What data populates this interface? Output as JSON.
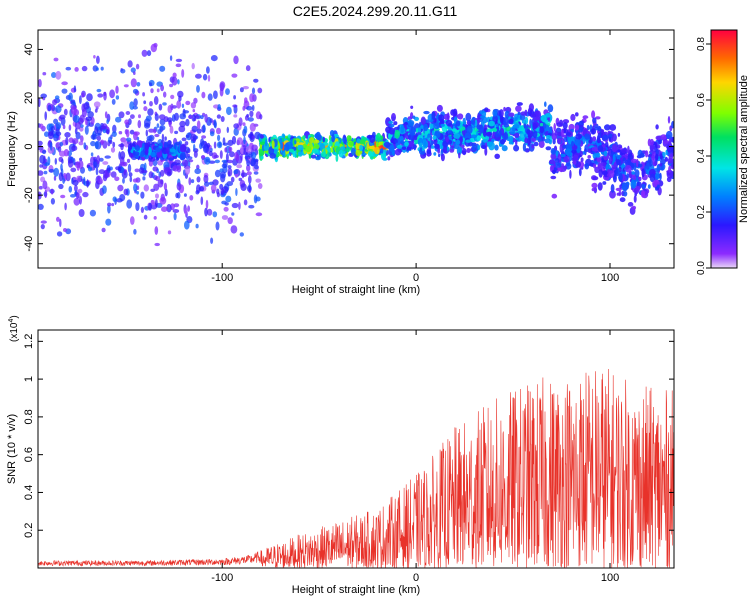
{
  "title": "C2E5.2024.299.20.11.G11",
  "chart_data": [
    {
      "type": "heatmap",
      "xlabel": "Height of straight line (km)",
      "ylabel": "Frequency (Hz)",
      "xlim": [
        -195,
        133
      ],
      "ylim": [
        -50,
        48
      ],
      "xticks": [
        -100,
        0,
        100
      ],
      "yticks": [
        -40,
        -20,
        0,
        20,
        40
      ],
      "grid": false,
      "colorbar": {
        "label": "Normalized spectral amplitude",
        "range": [
          0.0,
          0.85
        ],
        "ticks": [
          0.0,
          0.2,
          0.4,
          0.6,
          0.8
        ]
      },
      "regions": [
        {
          "x": [
            -195,
            -80
          ],
          "freq_center": 0,
          "freq_spread": 48,
          "amplitude": 0.1
        },
        {
          "x": [
            -148,
            -120
          ],
          "freq_center": -2,
          "freq_spread": 4,
          "amplitude": 0.25
        },
        {
          "x": [
            -80,
            -15
          ],
          "freq_center": 0,
          "freq_spread": 6,
          "amplitude": 0.55
        },
        {
          "x": [
            -15,
            70
          ],
          "freq_center": 4,
          "freq_spread": 12,
          "amplitude": 0.3
        },
        {
          "x": [
            70,
            133
          ],
          "freq_center": -5,
          "freq_spread": 18,
          "amplitude": 0.2
        }
      ]
    },
    {
      "type": "line",
      "xlabel": "Height of straight line (km)",
      "ylabel": "SNR (10 * v/v)",
      "y_multiplier": "(x10",
      "y_multiplier_exp": "4",
      "y_multiplier_close": ")",
      "xlim": [
        -195,
        133
      ],
      "ylim": [
        0,
        1.26
      ],
      "xticks": [
        -100,
        0,
        100
      ],
      "yticks": [
        0.2,
        0.4,
        0.6,
        0.8,
        1.0,
        1.2
      ],
      "grid": false,
      "series_color": "#e8322a",
      "envelope": {
        "x": [
          -195,
          -140,
          -100,
          -85,
          -75,
          -60,
          -40,
          -20,
          -5,
          5,
          20,
          40,
          60,
          80,
          95,
          110,
          125,
          133
        ],
        "y": [
          0.04,
          0.04,
          0.05,
          0.07,
          0.12,
          0.18,
          0.25,
          0.32,
          0.45,
          0.55,
          0.75,
          0.9,
          1.0,
          1.05,
          1.1,
          1.0,
          0.95,
          0.95
        ]
      }
    }
  ]
}
